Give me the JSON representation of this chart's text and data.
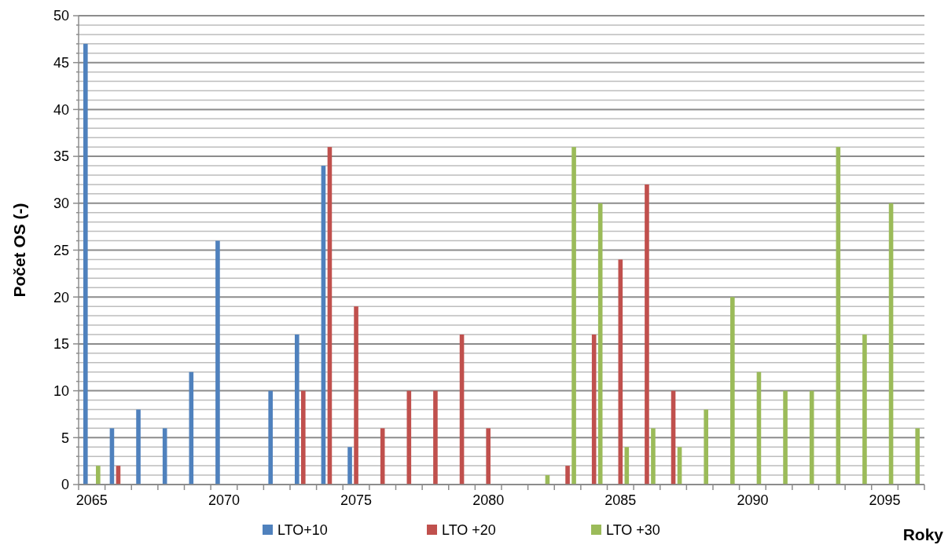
{
  "chart_data": {
    "type": "bar",
    "xlabel": "Roky",
    "ylabel": "Počet OS (-)",
    "categories": [
      "2065",
      null,
      null,
      null,
      null,
      "2070",
      null,
      null,
      null,
      null,
      "2075",
      null,
      null,
      null,
      null,
      "2080",
      null,
      null,
      null,
      null,
      "2085",
      null,
      null,
      null,
      null,
      "2090",
      null,
      null,
      null,
      null,
      "2095",
      null
    ],
    "series": [
      {
        "name": "LTO+10",
        "color": "#4f81bd",
        "values": [
          47,
          6,
          8,
          6,
          12,
          26,
          null,
          10,
          16,
          34,
          4,
          null,
          null,
          null,
          null,
          null,
          null,
          null,
          null,
          null,
          null,
          null,
          null,
          null,
          null,
          null,
          null,
          null,
          null,
          null,
          null,
          null
        ]
      },
      {
        "name": "LTO +20",
        "color": "#c0504d",
        "values": [
          null,
          2,
          null,
          null,
          null,
          null,
          null,
          null,
          10,
          36,
          19,
          6,
          10,
          10,
          16,
          6,
          null,
          null,
          2,
          16,
          24,
          32,
          10,
          null,
          null,
          null,
          null,
          null,
          null,
          null,
          null,
          null
        ]
      },
      {
        "name": "LTO +30",
        "color": "#9bbb59",
        "values": [
          2,
          null,
          null,
          null,
          null,
          null,
          null,
          null,
          null,
          null,
          null,
          null,
          null,
          null,
          null,
          null,
          null,
          1,
          36,
          30,
          4,
          6,
          4,
          8,
          20,
          12,
          10,
          10,
          36,
          16,
          30,
          6
        ]
      }
    ],
    "ylim": [
      0,
      50
    ],
    "yticks": [
      0,
      {
        "value": 1,
        "label": null
      },
      {
        "value": 2,
        "label": null
      },
      {
        "value": 3,
        "label": null
      },
      {
        "value": 4,
        "label": null
      },
      5,
      {
        "value": 6,
        "label": null
      },
      {
        "value": 7,
        "label": null
      },
      {
        "value": 8,
        "label": null
      },
      {
        "value": 9,
        "label": null
      },
      10,
      {
        "value": 11,
        "label": null
      },
      {
        "value": 12,
        "label": null
      },
      {
        "value": 13,
        "label": null
      },
      {
        "value": 14,
        "label": null
      },
      15,
      {
        "value": 16,
        "label": null
      },
      {
        "value": 17,
        "label": null
      },
      {
        "value": 18,
        "label": null
      },
      {
        "value": 19,
        "label": null
      },
      20,
      {
        "value": 21,
        "label": null
      },
      {
        "value": 22,
        "label": null
      },
      {
        "value": 23,
        "label": null
      },
      {
        "value": 24,
        "label": null
      },
      25,
      {
        "value": 26,
        "label": null
      },
      {
        "value": 27,
        "label": null
      },
      {
        "value": 28,
        "label": null
      },
      {
        "value": 29,
        "label": null
      },
      30,
      {
        "value": 31,
        "label": null
      },
      {
        "value": 32,
        "label": null
      },
      {
        "value": 33,
        "label": null
      },
      {
        "value": 34,
        "label": null
      },
      35,
      {
        "value": 36,
        "label": null
      },
      {
        "value": 37,
        "label": null
      },
      {
        "value": 38,
        "label": null
      },
      {
        "value": 39,
        "label": null
      },
      40,
      {
        "value": 41,
        "label": null
      },
      {
        "value": 42,
        "label": null
      },
      {
        "value": 43,
        "label": null
      },
      {
        "value": 44,
        "label": null
      },
      45,
      {
        "value": 46,
        "label": null
      },
      {
        "value": 47,
        "label": null
      },
      {
        "value": 48,
        "label": null
      },
      {
        "value": 49,
        "label": null
      },
      50
    ],
    "grid": "y",
    "legend": "bottom"
  }
}
